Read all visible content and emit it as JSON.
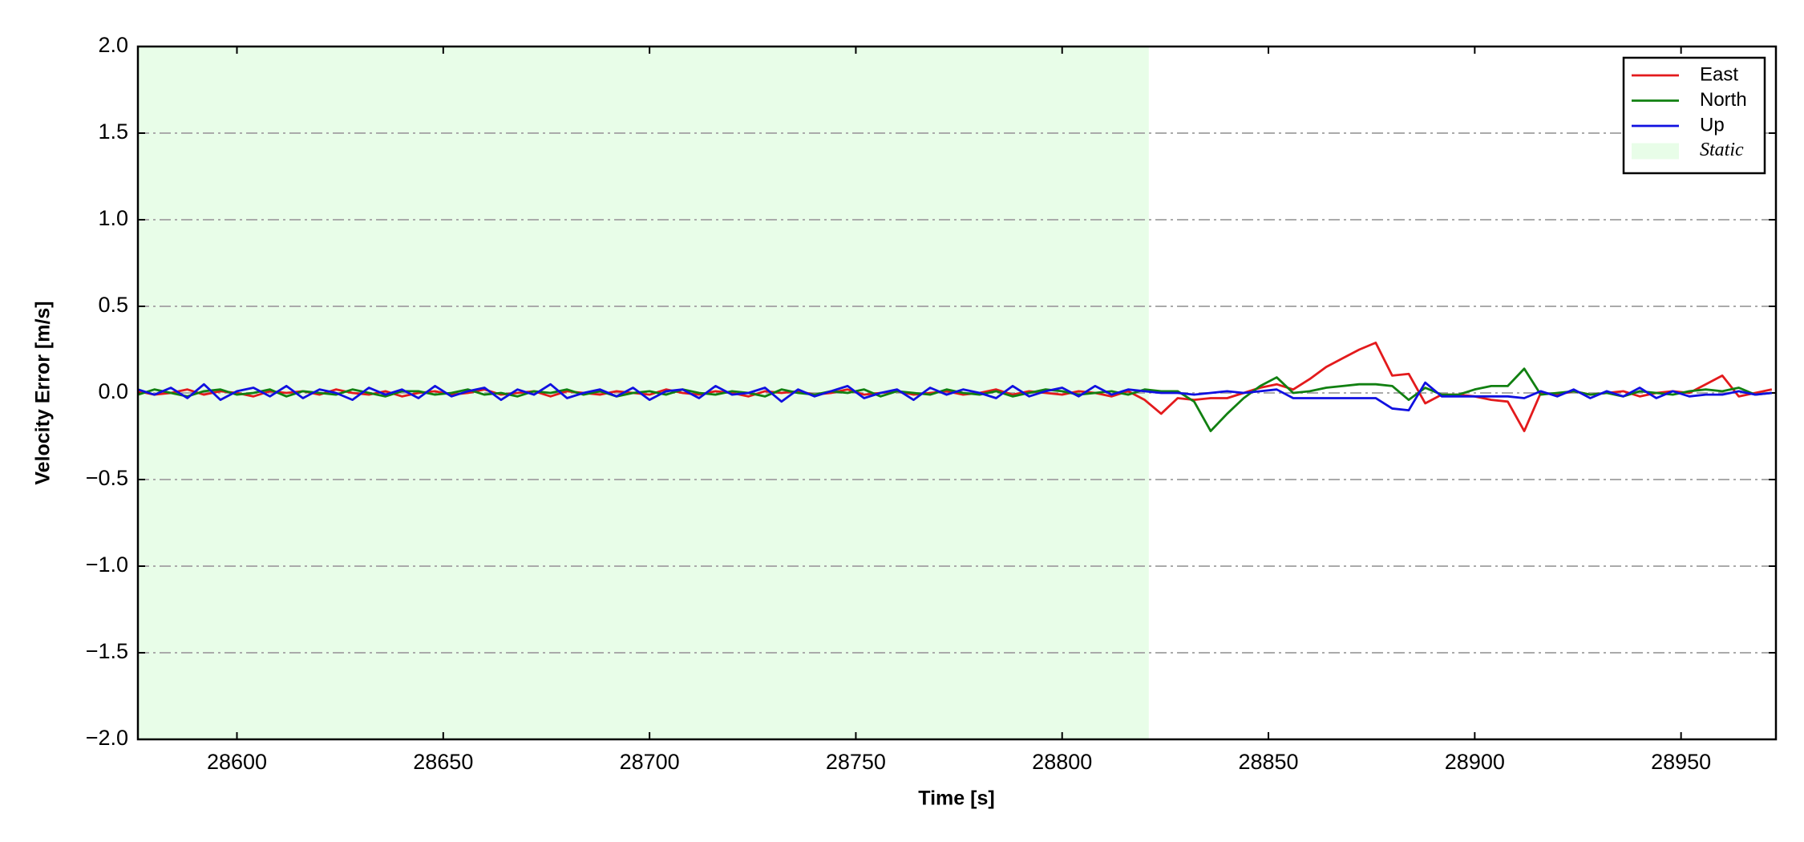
{
  "chart_data": {
    "type": "line",
    "xlabel": "Time [s]",
    "ylabel": "Velocity Error [m/s]",
    "xlim": [
      28576,
      28973
    ],
    "ylim": [
      -2.0,
      2.0
    ],
    "xticks": [
      28600,
      28650,
      28700,
      28750,
      28800,
      28850,
      28900,
      28950
    ],
    "yticks": [
      {
        "value": -2.0,
        "label": "−2.0"
      },
      {
        "value": -1.5,
        "label": "−1.5"
      },
      {
        "value": -1.0,
        "label": "−1.0"
      },
      {
        "value": -0.5,
        "label": "−0.5"
      },
      {
        "value": 0.0,
        "label": "0.0"
      },
      {
        "value": 0.5,
        "label": "0.5"
      },
      {
        "value": 1.0,
        "label": "1.0"
      },
      {
        "value": 1.5,
        "label": "1.5"
      },
      {
        "value": 2.0,
        "label": "2.0"
      }
    ],
    "grid": true,
    "legend": "upper right",
    "shaded_regions": [
      {
        "name": "Static",
        "color": "#e8fde8",
        "x": [
          28576,
          28821
        ]
      }
    ],
    "x": [
      28576,
      28580,
      28584,
      28588,
      28592,
      28596,
      28600,
      28604,
      28608,
      28612,
      28616,
      28620,
      28624,
      28628,
      28632,
      28636,
      28640,
      28644,
      28648,
      28652,
      28656,
      28660,
      28664,
      28668,
      28672,
      28676,
      28680,
      28684,
      28688,
      28692,
      28696,
      28700,
      28704,
      28708,
      28712,
      28716,
      28720,
      28724,
      28728,
      28732,
      28736,
      28740,
      28744,
      28748,
      28752,
      28756,
      28760,
      28764,
      28768,
      28772,
      28776,
      28780,
      28784,
      28788,
      28792,
      28796,
      28800,
      28804,
      28808,
      28812,
      28816,
      28820,
      28824,
      28828,
      28832,
      28836,
      28840,
      28844,
      28848,
      28852,
      28856,
      28860,
      28864,
      28868,
      28872,
      28876,
      28880,
      28884,
      28888,
      28892,
      28896,
      28900,
      28904,
      28908,
      28912,
      28916,
      28920,
      28924,
      28928,
      28932,
      28936,
      28940,
      28944,
      28948,
      28952,
      28956,
      28960,
      28964,
      28968,
      28972
    ],
    "series": [
      {
        "name": "East",
        "color": "#e31a1c",
        "values": [
          0.01,
          -0.01,
          0.0,
          0.02,
          -0.01,
          0.01,
          0.0,
          -0.02,
          0.01,
          0.0,
          0.01,
          -0.01,
          0.02,
          0.0,
          -0.01,
          0.01,
          -0.02,
          0.0,
          0.01,
          -0.01,
          0.0,
          0.02,
          -0.01,
          0.0,
          0.01,
          -0.02,
          0.01,
          0.0,
          -0.01,
          0.01,
          0.0,
          -0.01,
          0.02,
          0.0,
          -0.01,
          0.01,
          0.0,
          -0.02,
          0.01,
          0.0,
          0.01,
          -0.01,
          0.0,
          0.02,
          -0.01,
          0.0,
          0.01,
          -0.01,
          0.0,
          0.01,
          -0.01,
          0.0,
          0.02,
          -0.01,
          0.01,
          0.0,
          -0.01,
          0.01,
          0.0,
          -0.02,
          0.01,
          -0.04,
          -0.12,
          -0.03,
          -0.04,
          -0.03,
          -0.03,
          0.0,
          0.03,
          0.05,
          0.02,
          0.08,
          0.15,
          0.2,
          0.25,
          0.29,
          0.1,
          0.11,
          -0.06,
          -0.01,
          -0.01,
          -0.02,
          -0.04,
          -0.05,
          -0.22,
          0.0,
          -0.01,
          0.01,
          -0.01,
          0.0,
          0.01,
          -0.02,
          0.0,
          0.01,
          0.0,
          0.05,
          0.1,
          -0.02,
          0.0,
          0.02
        ]
      },
      {
        "name": "North",
        "color": "#118011",
        "values": [
          -0.01,
          0.02,
          0.0,
          -0.02,
          0.01,
          0.02,
          -0.01,
          0.0,
          0.02,
          -0.02,
          0.01,
          0.0,
          -0.01,
          0.02,
          0.0,
          -0.02,
          0.01,
          0.01,
          -0.01,
          0.0,
          0.02,
          -0.01,
          0.0,
          -0.02,
          0.01,
          0.0,
          0.02,
          -0.01,
          0.01,
          -0.02,
          0.0,
          0.01,
          -0.01,
          0.02,
          0.0,
          -0.01,
          0.01,
          0.0,
          -0.02,
          0.02,
          0.0,
          -0.01,
          0.01,
          0.0,
          0.02,
          -0.02,
          0.01,
          0.0,
          -0.01,
          0.02,
          0.0,
          -0.01,
          0.01,
          -0.02,
          0.0,
          0.02,
          0.01,
          -0.01,
          0.0,
          0.01,
          -0.01,
          0.02,
          0.01,
          0.01,
          -0.05,
          -0.22,
          -0.12,
          -0.03,
          0.04,
          0.09,
          0.0,
          0.01,
          0.03,
          0.04,
          0.05,
          0.05,
          0.04,
          -0.04,
          0.03,
          -0.01,
          -0.01,
          0.02,
          0.04,
          0.04,
          0.14,
          -0.01,
          0.0,
          0.01,
          -0.01,
          0.0,
          -0.02,
          0.01,
          0.0,
          -0.01,
          0.01,
          0.02,
          0.01,
          0.03,
          -0.01,
          0.0
        ]
      },
      {
        "name": "Up",
        "color": "#1010e0",
        "values": [
          0.02,
          -0.01,
          0.03,
          -0.03,
          0.05,
          -0.04,
          0.01,
          0.03,
          -0.02,
          0.04,
          -0.03,
          0.02,
          0.0,
          -0.04,
          0.03,
          -0.01,
          0.02,
          -0.03,
          0.04,
          -0.02,
          0.01,
          0.03,
          -0.04,
          0.02,
          -0.01,
          0.05,
          -0.03,
          0.0,
          0.02,
          -0.02,
          0.03,
          -0.04,
          0.01,
          0.02,
          -0.03,
          0.04,
          -0.01,
          0.0,
          0.03,
          -0.05,
          0.02,
          -0.02,
          0.01,
          0.04,
          -0.03,
          0.0,
          0.02,
          -0.04,
          0.03,
          -0.01,
          0.02,
          0.0,
          -0.03,
          0.04,
          -0.02,
          0.01,
          0.03,
          -0.02,
          0.04,
          -0.01,
          0.02,
          0.01,
          0.0,
          0.0,
          -0.01,
          0.0,
          0.01,
          0.0,
          0.01,
          0.02,
          -0.03,
          -0.03,
          -0.03,
          -0.03,
          -0.03,
          -0.03,
          -0.09,
          -0.1,
          0.06,
          -0.02,
          -0.02,
          -0.02,
          -0.02,
          -0.02,
          -0.03,
          0.01,
          -0.02,
          0.02,
          -0.03,
          0.01,
          -0.02,
          0.03,
          -0.03,
          0.01,
          -0.02,
          -0.01,
          -0.01,
          0.01,
          -0.01,
          0.0
        ]
      }
    ]
  }
}
